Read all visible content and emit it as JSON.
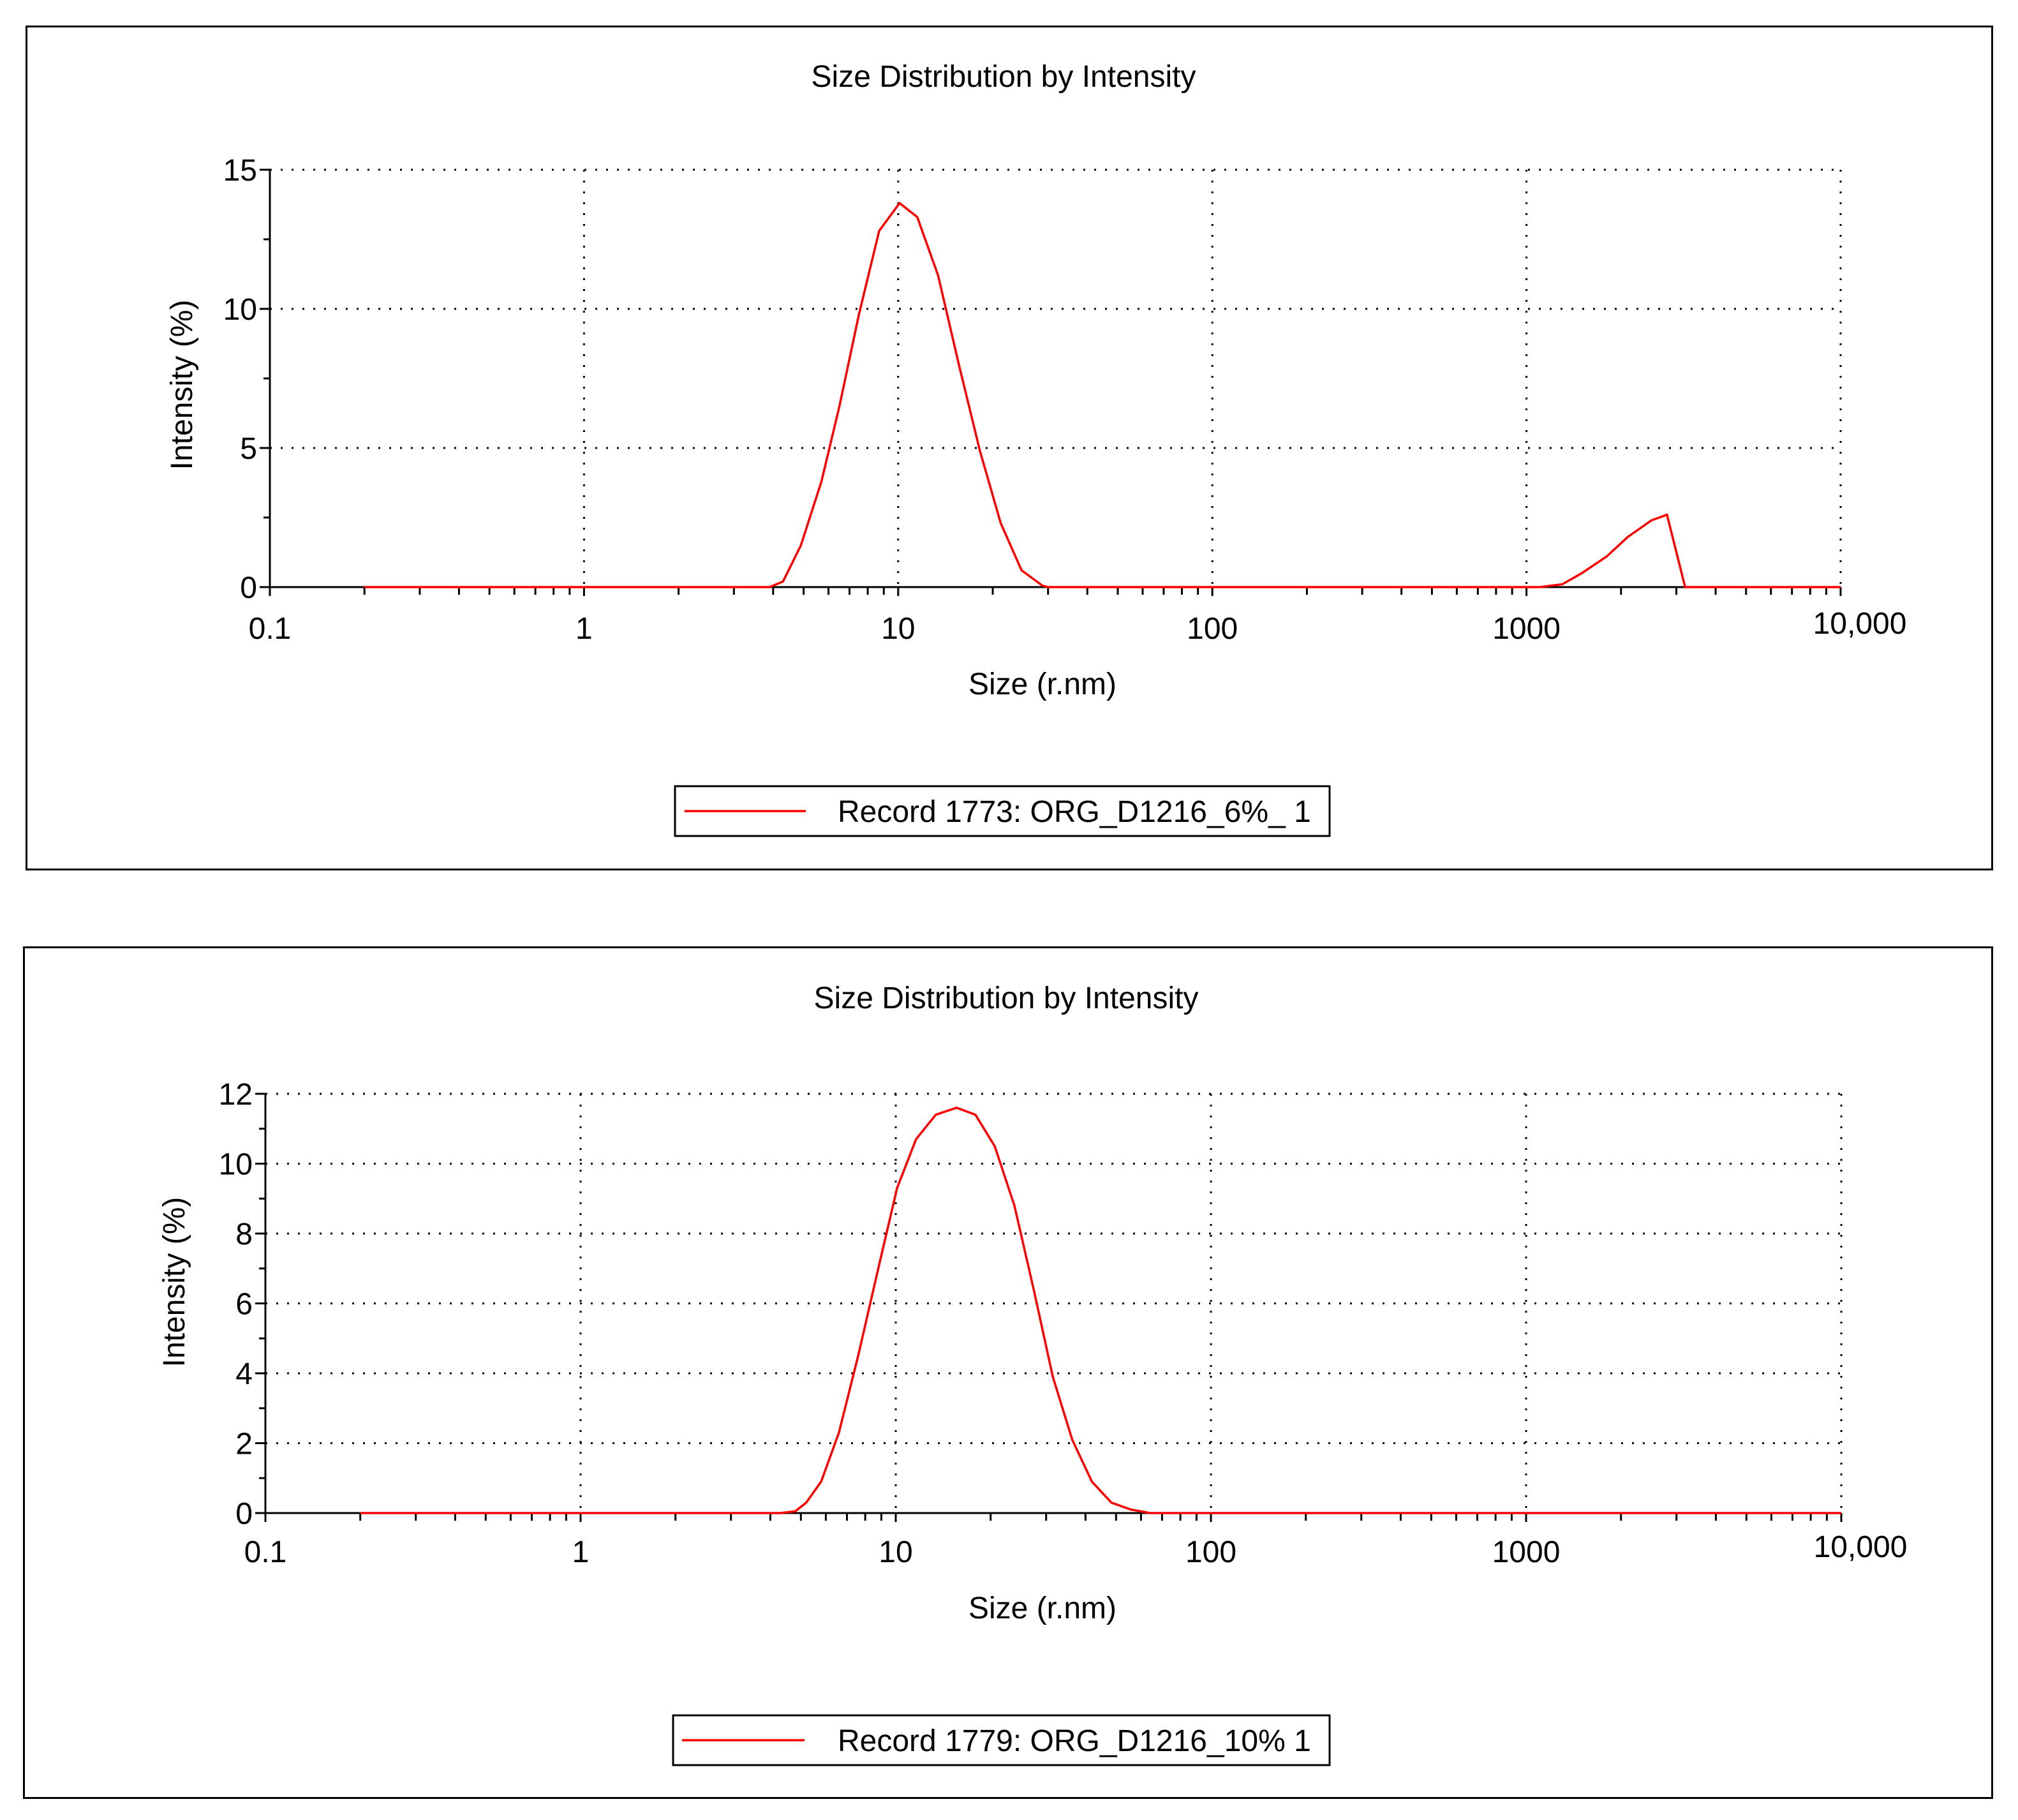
{
  "charts": [
    {
      "title": "Size Distribution by Intensity",
      "xlabel": "Size (r.nm)",
      "ylabel": "Intensity (%)",
      "legend": "Record 1773: ORG_D1216_6%_ 1",
      "xticks": [
        "0.1",
        "1",
        "10",
        "100",
        "1000",
        "10,000"
      ],
      "yticks": [
        "0",
        "5",
        "10",
        "15"
      ]
    },
    {
      "title": "Size Distribution by Intensity",
      "xlabel": "Size (r.nm)",
      "ylabel": "Intensity (%)",
      "legend": "Record 1779: ORG_D1216_10% 1",
      "xticks": [
        "0.1",
        "1",
        "10",
        "100",
        "1000",
        "10,000"
      ],
      "yticks": [
        "0",
        "2",
        "4",
        "6",
        "8",
        "10",
        "12"
      ]
    }
  ],
  "colors": {
    "series": "#ff0000",
    "axis": "#000000",
    "grid": "#000000"
  },
  "chart_data": [
    {
      "type": "line",
      "title": "Size Distribution by Intensity",
      "xlabel": "Size (r.nm)",
      "ylabel": "Intensity (%)",
      "xscale": "log",
      "xlim": [
        0.1,
        10000
      ],
      "ylim": [
        0,
        15
      ],
      "grid": true,
      "legend_position": "bottom-center",
      "series": [
        {
          "name": "Record 1773: ORG_D1216_6%_ 1",
          "x": [
            0.2,
            0.5,
            1,
            2,
            3.9,
            4.3,
            4.9,
            5.7,
            6.5,
            7.5,
            8.7,
            10.1,
            11.5,
            13.4,
            15.6,
            18.2,
            21.2,
            24.7,
            28.8,
            30,
            100,
            500,
            1100,
            1300,
            1500,
            1800,
            2100,
            2500,
            2800,
            3200,
            5000,
            10000
          ],
          "values": [
            0,
            0,
            0,
            0,
            0,
            0.2,
            1.5,
            3.8,
            6.5,
            9.8,
            12.8,
            13.8,
            13.3,
            11.2,
            8.0,
            4.9,
            2.3,
            0.6,
            0.05,
            0,
            0,
            0,
            0,
            0.1,
            0.5,
            1.1,
            1.8,
            2.4,
            2.6,
            0,
            0,
            0
          ]
        }
      ]
    },
    {
      "type": "line",
      "title": "Size Distribution by Intensity",
      "xlabel": "Size (r.nm)",
      "ylabel": "Intensity (%)",
      "xscale": "log",
      "xlim": [
        0.1,
        10000
      ],
      "ylim": [
        0,
        12
      ],
      "grid": true,
      "legend_position": "bottom-center",
      "series": [
        {
          "name": "Record 1779: ORG_D1216_10% 1",
          "x": [
            0.2,
            0.5,
            1,
            2,
            4.3,
            4.8,
            5.2,
            5.8,
            6.6,
            7.6,
            8.8,
            10.1,
            11.6,
            13.4,
            15.6,
            17.9,
            20.6,
            23.8,
            27.4,
            31.5,
            36.3,
            41.9,
            48.3,
            55.7,
            64.2,
            100,
            1000,
            10000
          ],
          "values": [
            0,
            0,
            0,
            0,
            0,
            0.05,
            0.3,
            0.9,
            2.3,
            4.5,
            7.0,
            9.3,
            10.7,
            11.4,
            11.6,
            11.4,
            10.5,
            8.8,
            6.4,
            3.9,
            2.1,
            0.9,
            0.3,
            0.1,
            0,
            0,
            0,
            0
          ]
        }
      ]
    }
  ]
}
